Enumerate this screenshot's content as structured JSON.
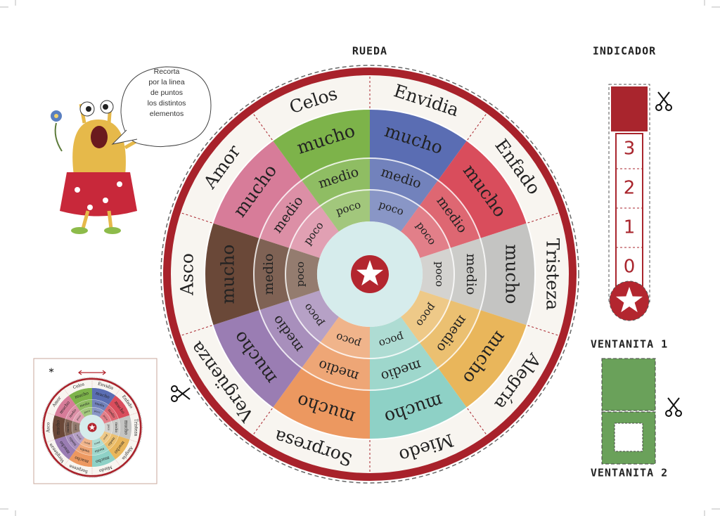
{
  "wheel": {
    "title": "RUEDA",
    "levels": [
      "mucho",
      "medio",
      "poco"
    ],
    "emotions": [
      {
        "name": "Envidia",
        "color": "#5a6db3"
      },
      {
        "name": "Enfado",
        "color": "#d94d5c"
      },
      {
        "name": "Tristeza",
        "color": "#c4c4c2"
      },
      {
        "name": "Alegría",
        "color": "#e9b65b"
      },
      {
        "name": "Miedo",
        "color": "#8ed1c6"
      },
      {
        "name": "Sorpresa",
        "color": "#ec9860"
      },
      {
        "name": "Vergüenza",
        "color": "#9a7db3"
      },
      {
        "name": "Asco",
        "color": "#6a4838"
      },
      {
        "name": "Amor",
        "color": "#d77c99"
      },
      {
        "name": "Celos",
        "color": "#7db34a"
      }
    ]
  },
  "indicator": {
    "title": "INDICADOR",
    "numbers": [
      3,
      2,
      1,
      0
    ]
  },
  "windows": [
    {
      "label": "VENTANITA 1"
    },
    {
      "label": "VENTANITA 2"
    }
  ],
  "speech_bubble": {
    "lines": [
      "Recorta",
      "por la linea",
      "de puntos",
      "los distintos",
      "elementos"
    ]
  },
  "thumbnail": {
    "marker": "*"
  }
}
